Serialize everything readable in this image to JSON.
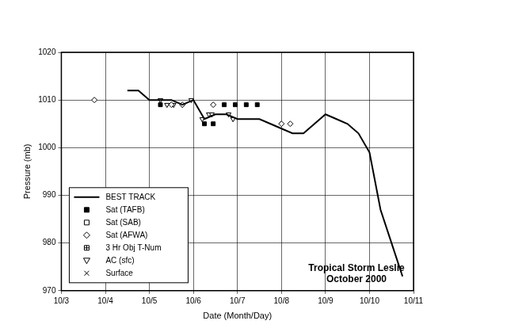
{
  "chart_data": {
    "type": "scatter",
    "x_label": "Date (Month/Day)",
    "y_label": "Pressure (mb)",
    "annotation": [
      "Tropical Storm Leslie",
      "October 2000"
    ],
    "xlim": [
      3,
      11
    ],
    "xticks": [
      {
        "value": 3,
        "label": "10/3"
      },
      {
        "value": 4,
        "label": "10/4"
      },
      {
        "value": 5,
        "label": "10/5"
      },
      {
        "value": 6,
        "label": "10/6"
      },
      {
        "value": 7,
        "label": "10/7"
      },
      {
        "value": 8,
        "label": "10/8"
      },
      {
        "value": 9,
        "label": "10/9"
      },
      {
        "value": 10,
        "label": "10/10"
      },
      {
        "value": 11,
        "label": "10/11"
      }
    ],
    "ylim": [
      970,
      1020
    ],
    "yticks": [
      970,
      980,
      990,
      1000,
      1010,
      1020
    ],
    "grid": true,
    "legend": "lower left",
    "series": [
      {
        "name": "BEST TRACK",
        "color": "#000000",
        "marker": "none",
        "line_style": "solid",
        "x": [
          4.5,
          4.75,
          5,
          5.25,
          5.5,
          5.75,
          6,
          6.25,
          6.5,
          6.75,
          7,
          7.25,
          7.5,
          7.75,
          8,
          8.25,
          8.5,
          8.75,
          9,
          9.25,
          9.5,
          9.75,
          10,
          10.25,
          10.5,
          10.75
        ],
        "values": [
          1012,
          1012,
          1010,
          1010,
          1010,
          1009,
          1010,
          1006,
          1007,
          1007,
          1006,
          1006,
          1006,
          1005,
          1004,
          1003,
          1003,
          1005,
          1007,
          1006,
          1005,
          1003,
          999,
          987,
          980,
          973
        ]
      },
      {
        "name": "Sat (TAFB)",
        "color": "#000000",
        "marker": "square_filled",
        "line_style": "none",
        "x": [
          5.25,
          6.25,
          6.45,
          6.7,
          6.95,
          7.2,
          7.45
        ],
        "values": [
          1009,
          1005,
          1005,
          1009,
          1009,
          1009,
          1009
        ]
      },
      {
        "name": "Sat (SAB)",
        "color": "#000000",
        "marker": "square_open",
        "line_style": "none",
        "x": [],
        "values": []
      },
      {
        "name": "Sat (AFWA)",
        "color": "#000000",
        "marker": "diamond_open",
        "line_style": "none",
        "x": [
          3.75,
          5.5,
          5.75,
          6.45,
          8.0,
          8.2
        ],
        "values": [
          1010,
          1009,
          1009,
          1009,
          1005,
          1005
        ]
      },
      {
        "name": "3 Hr Obj T-Num",
        "color": "#000000",
        "marker": "square_cross",
        "line_style": "none",
        "x": [],
        "values": []
      },
      {
        "name": "AC (sfc)",
        "color": "#000000",
        "marker": "triangle_down_open",
        "line_style": "none",
        "x": [
          5.25,
          5.4,
          5.55,
          5.75,
          5.95,
          6.2,
          6.35,
          6.42,
          6.8,
          6.9
        ],
        "values": [
          1010,
          1009,
          1009,
          1009,
          1010,
          1006,
          1007,
          1007,
          1007,
          1006
        ]
      },
      {
        "name": "Surface",
        "color": "#000000",
        "marker": "x",
        "line_style": "none",
        "x": [],
        "values": []
      }
    ]
  }
}
